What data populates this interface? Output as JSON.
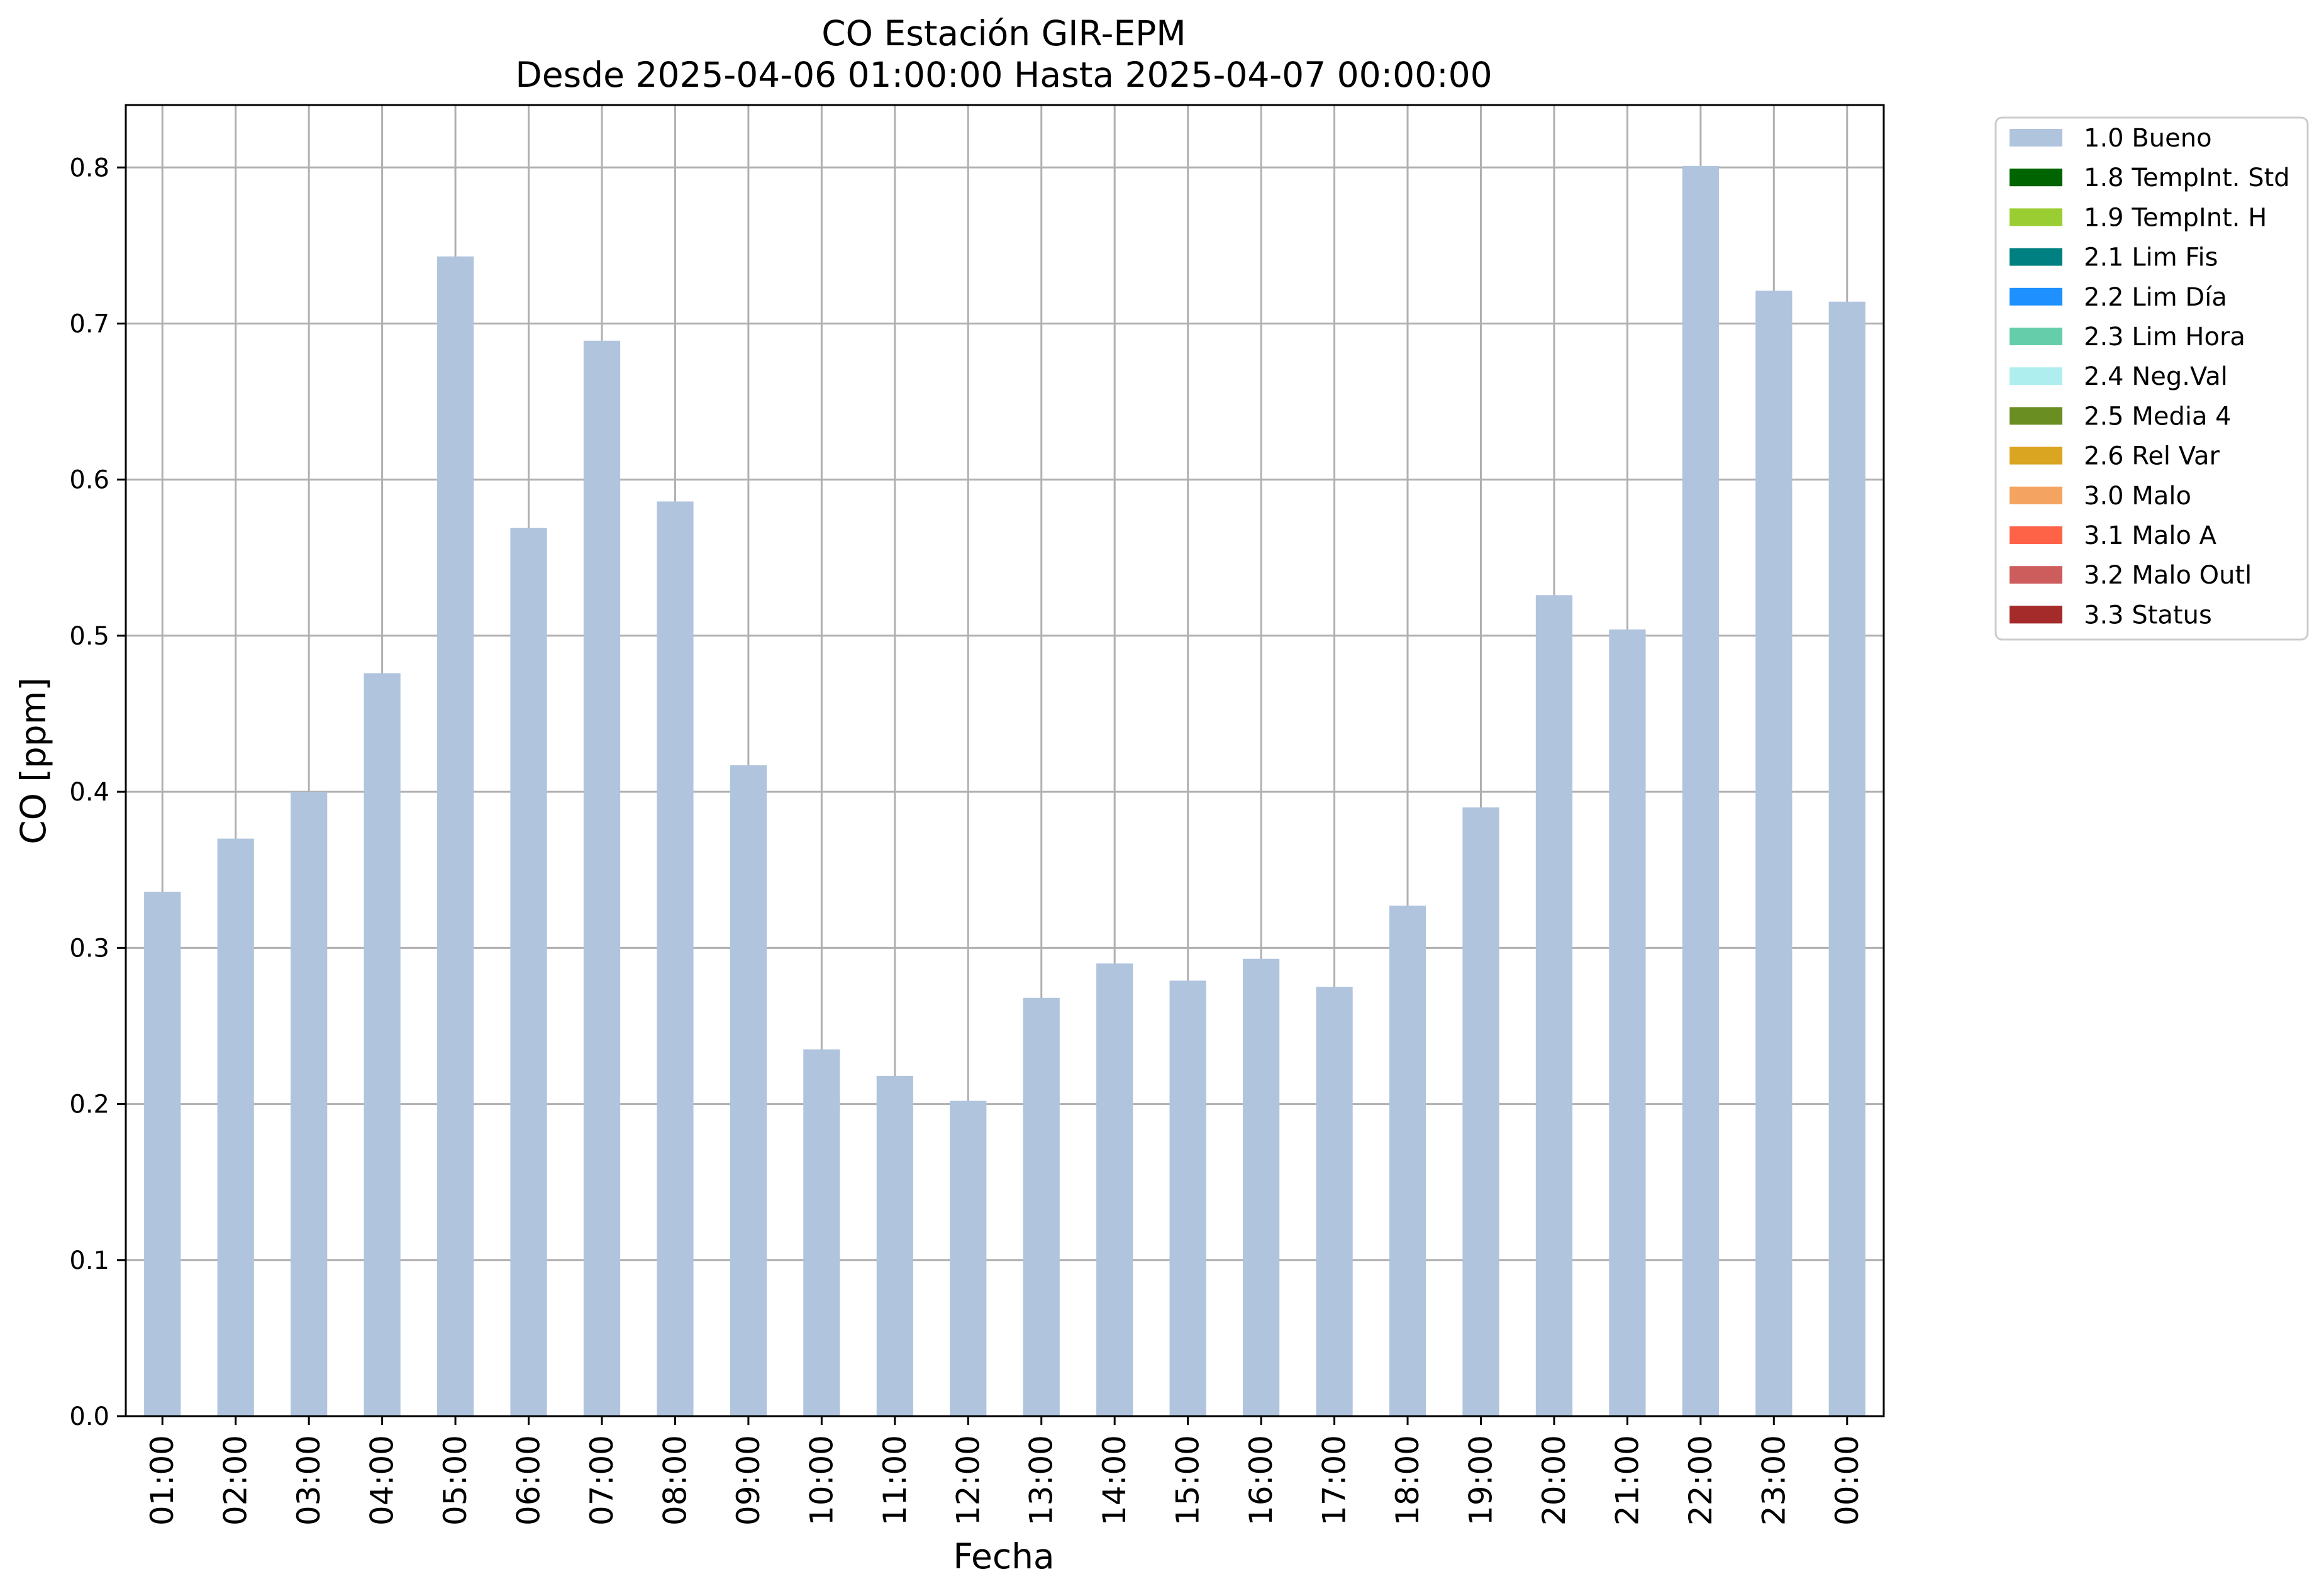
{
  "chart_data": {
    "type": "bar",
    "title": "CO Estación GIR-EPM",
    "subtitle": "Desde 2025-04-06 01:00:00 Hasta 2025-04-07 00:00:00",
    "xlabel": "Fecha",
    "ylabel": "CO [ppm]",
    "ylim": [
      0,
      0.84
    ],
    "yticks": [
      0.0,
      0.1,
      0.2,
      0.3,
      0.4,
      0.5,
      0.6,
      0.7,
      0.8
    ],
    "grid": true,
    "legend_position": "outside-top-right",
    "categories": [
      "01:00",
      "02:00",
      "03:00",
      "04:00",
      "05:00",
      "06:00",
      "07:00",
      "08:00",
      "09:00",
      "10:00",
      "11:00",
      "12:00",
      "13:00",
      "14:00",
      "15:00",
      "16:00",
      "17:00",
      "18:00",
      "19:00",
      "20:00",
      "21:00",
      "22:00",
      "23:00",
      "00:00"
    ],
    "series": [
      {
        "name": "1.0 Bueno",
        "color": "#b0c4de",
        "values": [
          0.336,
          0.37,
          0.4,
          0.476,
          0.743,
          0.569,
          0.689,
          0.586,
          0.417,
          0.235,
          0.218,
          0.202,
          0.268,
          0.29,
          0.279,
          0.293,
          0.275,
          0.327,
          0.39,
          0.526,
          0.504,
          0.801,
          0.721,
          0.714
        ]
      }
    ],
    "legend": [
      {
        "label": "1.0 Bueno",
        "color": "#b0c4de"
      },
      {
        "label": "1.8 TempInt. Std",
        "color": "#006400"
      },
      {
        "label": "1.9 TempInt. H",
        "color": "#9acd32"
      },
      {
        "label": "2.1 Lim Fis",
        "color": "#008080"
      },
      {
        "label": "2.2 Lim Día",
        "color": "#1e90ff"
      },
      {
        "label": "2.3 Lim Hora",
        "color": "#66cdaa"
      },
      {
        "label": "2.4 Neg.Val",
        "color": "#afeeee"
      },
      {
        "label": "2.5 Media 4",
        "color": "#6b8e23"
      },
      {
        "label": "2.6 Rel Var",
        "color": "#daa520"
      },
      {
        "label": "3.0 Malo",
        "color": "#f4a460"
      },
      {
        "label": "3.1 Malo A",
        "color": "#ff6347"
      },
      {
        "label": "3.2 Malo Outl",
        "color": "#cd5c5c"
      },
      {
        "label": "3.3 Status",
        "color": "#a52a2a"
      }
    ]
  }
}
